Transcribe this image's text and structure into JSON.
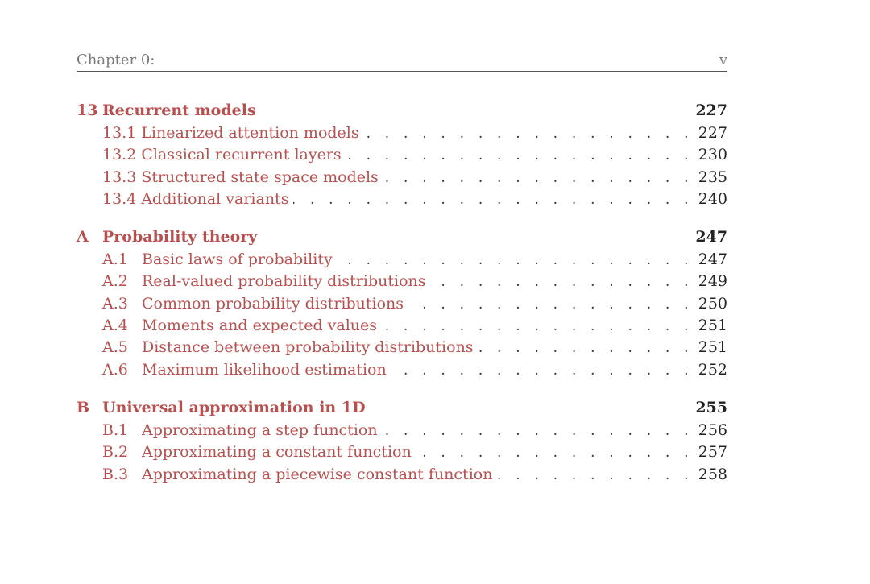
{
  "header": {
    "chapter": "Chapter 0:",
    "page": "v"
  },
  "toc": [
    {
      "number": "13",
      "title": "Recurrent models",
      "page": "227",
      "sections": [
        {
          "number": "13.1",
          "title": "Linearized attention models",
          "page": "227"
        },
        {
          "number": "13.2",
          "title": "Classical recurrent layers",
          "page": "230"
        },
        {
          "number": "13.3",
          "title": "Structured state space models",
          "page": "235"
        },
        {
          "number": "13.4",
          "title": "Additional variants",
          "page": "240"
        }
      ]
    },
    {
      "number": "A",
      "title": "Probability theory",
      "page": "247",
      "sections": [
        {
          "number": "A.1",
          "title": "Basic laws of probability",
          "page": "247"
        },
        {
          "number": "A.2",
          "title": "Real-valued probability distributions",
          "page": "249"
        },
        {
          "number": "A.3",
          "title": "Common probability distributions",
          "page": "250"
        },
        {
          "number": "A.4",
          "title": "Moments and expected values",
          "page": "251"
        },
        {
          "number": "A.5",
          "title": "Distance between probability distributions",
          "page": "251"
        },
        {
          "number": "A.6",
          "title": "Maximum likelihood estimation",
          "page": "252"
        }
      ]
    },
    {
      "number": "B",
      "title": "Universal approximation in 1D",
      "page": "255",
      "sections": [
        {
          "number": "B.1",
          "title": "Approximating a step function",
          "page": "256"
        },
        {
          "number": "B.2",
          "title": "Approximating a constant function",
          "page": "257"
        },
        {
          "number": "B.3",
          "title": "Approximating a piecewise constant function",
          "page": "258"
        }
      ]
    }
  ],
  "colors": {
    "link": "#b9504f",
    "text": "#222222",
    "header": "#7a7a7a"
  }
}
